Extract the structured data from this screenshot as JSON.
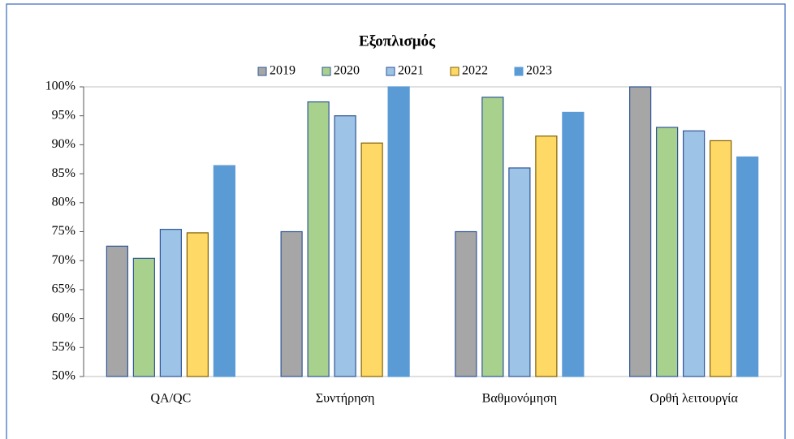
{
  "chart_data": {
    "type": "bar",
    "title": "Εξοπλισμός",
    "categories": [
      "QA/QC",
      "Συντήρηση",
      "Βαθμονόμηση",
      "Ορθή λειτουργία"
    ],
    "series": [
      {
        "name": "2019",
        "color": "#a6a6a6",
        "edge_color": "#2f5597",
        "values": [
          72.5,
          75,
          75,
          100
        ]
      },
      {
        "name": "2020",
        "color": "#a9d18e",
        "edge_color": "#2f5597",
        "values": [
          70.4,
          97.4,
          98.2,
          93
        ]
      },
      {
        "name": "2021",
        "color": "#9dc3e6",
        "edge_color": "#2f5597",
        "values": [
          75.4,
          95,
          86,
          92.4
        ]
      },
      {
        "name": "2022",
        "color": "#ffd966",
        "edge_color": "#7f6000",
        "values": [
          74.8,
          90.3,
          91.5,
          90.7
        ]
      },
      {
        "name": "2023",
        "color": "#5b9bd5",
        "edge_color": "#5b9bd5",
        "values": [
          86.4,
          100,
          95.6,
          87.9
        ]
      }
    ],
    "ylim": [
      50,
      100
    ],
    "yticks": [
      {
        "value": 50,
        "label": "50%"
      },
      {
        "value": 55,
        "label": "55%"
      },
      {
        "value": 60,
        "label": "60%"
      },
      {
        "value": 65,
        "label": "65%"
      },
      {
        "value": 70,
        "label": "70%"
      },
      {
        "value": 75,
        "label": "75%"
      },
      {
        "value": 80,
        "label": "80%"
      },
      {
        "value": 85,
        "label": "85%"
      },
      {
        "value": 90,
        "label": "90%"
      },
      {
        "value": 95,
        "label": "95%"
      },
      {
        "value": 100,
        "label": "100%"
      }
    ],
    "legend": "top",
    "grid": false
  }
}
